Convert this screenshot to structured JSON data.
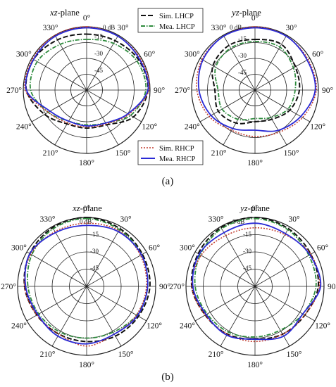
{
  "figure": {
    "panel_labels": [
      "(a)",
      "(b)"
    ],
    "subplot_titles": [
      {
        "italic": "xz",
        "rest": "-plane"
      },
      {
        "italic": "yz",
        "rest": "-plane"
      },
      {
        "italic": "xz",
        "rest": "-plane"
      },
      {
        "italic": "yz",
        "rest": "-plane"
      }
    ],
    "angle_ticks": [
      "0°",
      "30°",
      "60°",
      "90°",
      "120°",
      "150°",
      "180°",
      "210°",
      "240°",
      "270°",
      "300°",
      "330°"
    ],
    "radial_ticks": [
      "0 dB",
      "-15",
      "-30",
      "-45"
    ],
    "legend_lhcp": [
      "Sim. LHCP",
      "Mea. LHCP"
    ],
    "legend_rhcp": [
      "Sim. RHCP",
      "Mea. RHCP"
    ]
  },
  "colors": {
    "sim_lhcp": "#111111",
    "mea_lhcp": "#2e8b3d",
    "sim_rhcp": "#c0392b",
    "mea_rhcp": "#2a2ad6",
    "grid": "#222222"
  },
  "chart_data": [
    {
      "type": "polar-line",
      "panel": "(a)",
      "title": "xz-plane",
      "r_unit": "dB",
      "r_range": [
        -60,
        0
      ],
      "theta_deg": [
        0,
        30,
        60,
        90,
        120,
        150,
        180,
        210,
        240,
        270,
        300,
        330
      ],
      "series": [
        {
          "name": "Sim. LHCP",
          "values": [
            -7,
            -6,
            -3,
            -2,
            -9,
            -22,
            -24,
            -23,
            -14,
            -3,
            -2,
            -5
          ]
        },
        {
          "name": "Mea. LHCP",
          "values": [
            -12,
            -9,
            -5,
            -4,
            -12,
            -24,
            -27,
            -26,
            -18,
            -7,
            -6,
            -10
          ]
        },
        {
          "name": "Sim. RHCP",
          "values": [
            0,
            -1,
            -1,
            -1,
            -14,
            -23,
            -25,
            -24,
            -18,
            -2,
            -1,
            0
          ]
        },
        {
          "name": "Mea. RHCP",
          "values": [
            -1,
            -1,
            -2,
            -2,
            -15,
            -24,
            -26,
            -26,
            -20,
            -3,
            -2,
            -1
          ]
        }
      ]
    },
    {
      "type": "polar-line",
      "panel": "(a)",
      "title": "yz-plane",
      "r_unit": "dB",
      "r_range": [
        -60,
        0
      ],
      "theta_deg": [
        0,
        30,
        60,
        90,
        120,
        150,
        180,
        210,
        240,
        270,
        300,
        330
      ],
      "series": [
        {
          "name": "Sim. LHCP",
          "values": [
            -12,
            -10,
            -16,
            -18,
            -22,
            -28,
            -30,
            -24,
            -20,
            -22,
            -14,
            -11
          ]
        },
        {
          "name": "Mea. LHCP",
          "values": [
            -14,
            -13,
            -18,
            -22,
            -24,
            -30,
            -33,
            -28,
            -24,
            -25,
            -17,
            -14
          ]
        },
        {
          "name": "Sim. RHCP",
          "values": [
            0,
            -1,
            -2,
            -2,
            -8,
            -14,
            -16,
            -16,
            -10,
            -5,
            -2,
            -1
          ]
        },
        {
          "name": "Mea. RHCP",
          "values": [
            -1,
            -1,
            -3,
            -3,
            -10,
            -16,
            -22,
            -18,
            -12,
            -7,
            -3,
            -1
          ]
        }
      ]
    },
    {
      "type": "polar-line",
      "panel": "(b)",
      "title": "xz-plane",
      "r_unit": "dB",
      "r_range": [
        -60,
        0
      ],
      "theta_deg": [
        0,
        30,
        60,
        90,
        120,
        150,
        180,
        210,
        240,
        270,
        300,
        330
      ],
      "series": [
        {
          "name": "Sim. LHCP",
          "values": [
            0,
            -2,
            -4,
            -5,
            -8,
            -10,
            -12,
            -12,
            -10,
            -6,
            -3,
            -1
          ]
        },
        {
          "name": "Mea. LHCP",
          "values": [
            -1,
            -3,
            -5,
            -7,
            -10,
            -14,
            -15,
            -14,
            -12,
            -9,
            -5,
            -2
          ]
        },
        {
          "name": "Sim. RHCP",
          "values": [
            -5,
            -4,
            -6,
            -8,
            -10,
            -12,
            -8,
            -12,
            -10,
            -6,
            -4,
            -5
          ]
        },
        {
          "name": "Mea. RHCP",
          "values": [
            -7,
            -5,
            -5,
            -7,
            -9,
            -12,
            -10,
            -10,
            -11,
            -7,
            -3,
            -6
          ]
        }
      ]
    },
    {
      "type": "polar-line",
      "panel": "(b)",
      "title": "yz-plane",
      "r_unit": "dB",
      "r_range": [
        -60,
        0
      ],
      "theta_deg": [
        0,
        30,
        60,
        90,
        120,
        150,
        180,
        210,
        240,
        270,
        300,
        330
      ],
      "series": [
        {
          "name": "Sim. LHCP",
          "values": [
            0,
            -2,
            -4,
            -5,
            -10,
            -12,
            -14,
            -12,
            -10,
            -5,
            -3,
            -1
          ]
        },
        {
          "name": "Mea. LHCP",
          "values": [
            -1,
            -3,
            -6,
            -7,
            -12,
            -16,
            -16,
            -14,
            -12,
            -8,
            -5,
            -2
          ]
        },
        {
          "name": "Sim. RHCP",
          "values": [
            -9,
            -8,
            -4,
            -4,
            -10,
            -12,
            -12,
            -12,
            -10,
            -5,
            -6,
            -9
          ]
        },
        {
          "name": "Mea. RHCP",
          "values": [
            -5,
            -7,
            -5,
            -3,
            -12,
            -10,
            -14,
            -11,
            -11,
            -6,
            -4,
            -6
          ]
        }
      ]
    }
  ]
}
